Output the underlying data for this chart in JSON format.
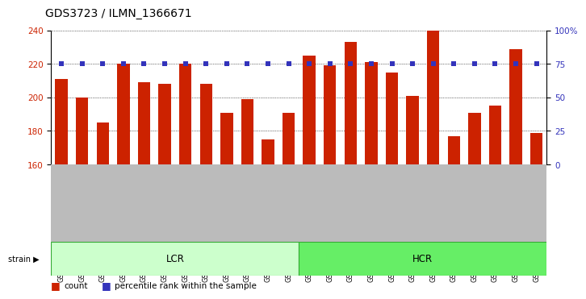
{
  "title": "GDS3723 / ILMN_1366671",
  "categories": [
    "GSM429923",
    "GSM429924",
    "GSM429925",
    "GSM429926",
    "GSM429929",
    "GSM429930",
    "GSM429933",
    "GSM429934",
    "GSM429937",
    "GSM429938",
    "GSM429941",
    "GSM429942",
    "GSM429920",
    "GSM429922",
    "GSM429927",
    "GSM429928",
    "GSM429931",
    "GSM429932",
    "GSM429935",
    "GSM429936",
    "GSM429939",
    "GSM429940",
    "GSM429943",
    "GSM429944"
  ],
  "bar_values": [
    211,
    200,
    185,
    220,
    209,
    208,
    220,
    208,
    191,
    199,
    175,
    191,
    225,
    219,
    233,
    221,
    215,
    201,
    240,
    177,
    191,
    195,
    229,
    179
  ],
  "bar_color": "#cc2200",
  "dot_color": "#3333bb",
  "dot_pct": 75,
  "ylim_left": [
    160,
    240
  ],
  "ylim_right": [
    0,
    100
  ],
  "yticks_left": [
    160,
    180,
    200,
    220,
    240
  ],
  "yticks_right": [
    0,
    25,
    50,
    75,
    100
  ],
  "group_labels": [
    "LCR",
    "HCR"
  ],
  "group_sizes": [
    12,
    12
  ],
  "group_colors": [
    "#ccffcc",
    "#66ee66"
  ],
  "group_edge_color": "#33aa33",
  "strain_label": "strain",
  "legend_count_label": "count",
  "legend_percentile_label": "percentile rank within the sample",
  "background_color": "#ffffff",
  "tick_area_color": "#bbbbbb",
  "title_fontsize": 10,
  "tick_fontsize": 7.5,
  "label_fontsize": 8.5
}
